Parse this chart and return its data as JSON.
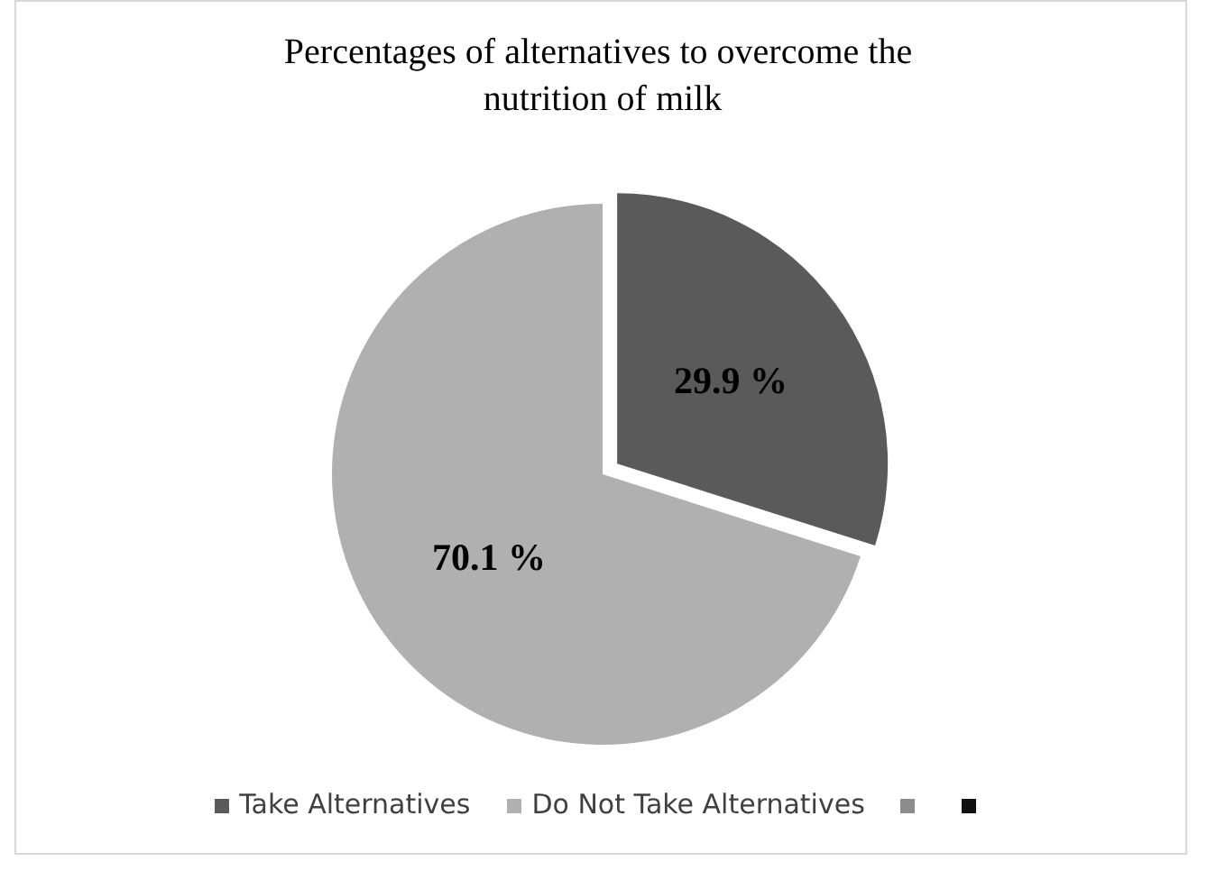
{
  "chart_data": {
    "type": "pie",
    "title": "Percentages of alternatives to overcome the nutrition of milk",
    "categories": [
      "Take Alternatives",
      "Do Not Take Alternatives",
      null,
      null
    ],
    "values": [
      29.9,
      70.1,
      0,
      0
    ],
    "colors": [
      "#5a5a5a",
      "#b0b0b0",
      "#8c8c8c",
      "#111111"
    ],
    "value_labels": [
      "29.9 %",
      "70.1 %",
      null,
      null
    ],
    "legend": "bottom"
  }
}
